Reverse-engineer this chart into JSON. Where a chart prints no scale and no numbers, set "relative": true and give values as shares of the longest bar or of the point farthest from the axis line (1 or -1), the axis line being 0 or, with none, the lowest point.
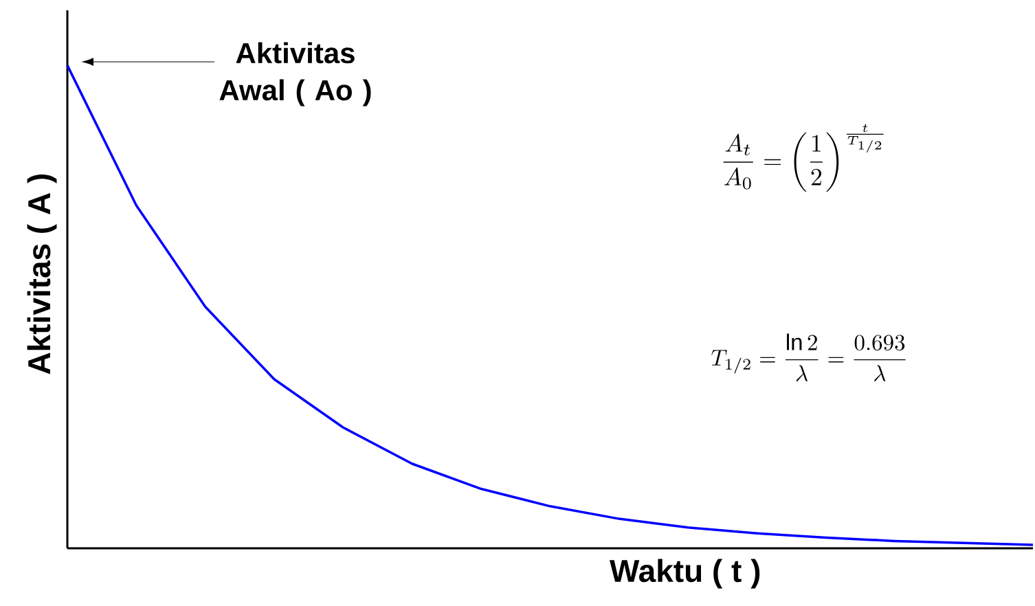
{
  "chart_data": {
    "type": "line",
    "relative": true,
    "xlabel": "Waktu ( t )",
    "ylabel": "Aktivitas ( A )",
    "categories": [
      null,
      null,
      null,
      null,
      null,
      null,
      null,
      null,
      null,
      null,
      null,
      null,
      null,
      null,
      null
    ],
    "series": [
      {
        "color": "#0000ff",
        "values": [
          1.0,
          0.71,
          0.5,
          0.35,
          0.25,
          0.175,
          0.123,
          0.087,
          0.061,
          0.043,
          0.031,
          0.022,
          0.015,
          0.011,
          0.007
        ]
      }
    ],
    "annotations": [
      "Aktivitas Awal ( Ao )",
      "\\frac{A_t}{A_0}=\\left(\\frac{1}{2}\\right)^{\\frac{t}{T_{1/2}}}",
      "T_{1/2}=\\frac{\\ln 2}{\\lambda}=\\frac{0.693}{\\lambda}"
    ],
    "marker": "none",
    "line_style": "solid"
  }
}
